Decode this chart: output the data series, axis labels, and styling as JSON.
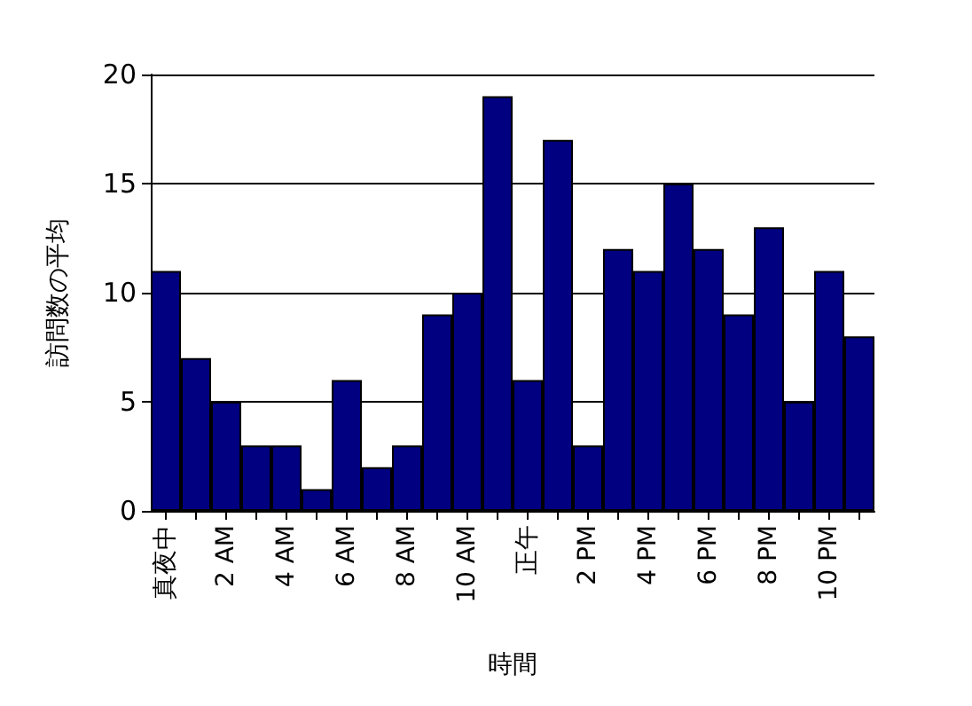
{
  "chart_data": {
    "type": "bar",
    "xlabel": "時間",
    "ylabel": "訪問数の平均",
    "categories": [
      "真夜中",
      null,
      "2 AM",
      null,
      "4 AM",
      null,
      "6 AM",
      null,
      "8 AM",
      null,
      "10 AM",
      null,
      "正午",
      null,
      "2 PM",
      null,
      "4 PM",
      null,
      "6 PM",
      null,
      "8 PM",
      null,
      "10 PM",
      null
    ],
    "values": [
      11,
      7,
      5,
      3,
      3,
      1,
      6,
      2,
      3,
      9,
      10,
      19,
      6,
      17,
      3,
      12,
      11,
      15,
      12,
      9,
      13,
      5,
      11,
      8
    ],
    "color": "#000080",
    "ylim": [
      0,
      20
    ],
    "yticks": [
      0,
      5,
      10,
      15,
      20
    ],
    "grid": "y"
  }
}
